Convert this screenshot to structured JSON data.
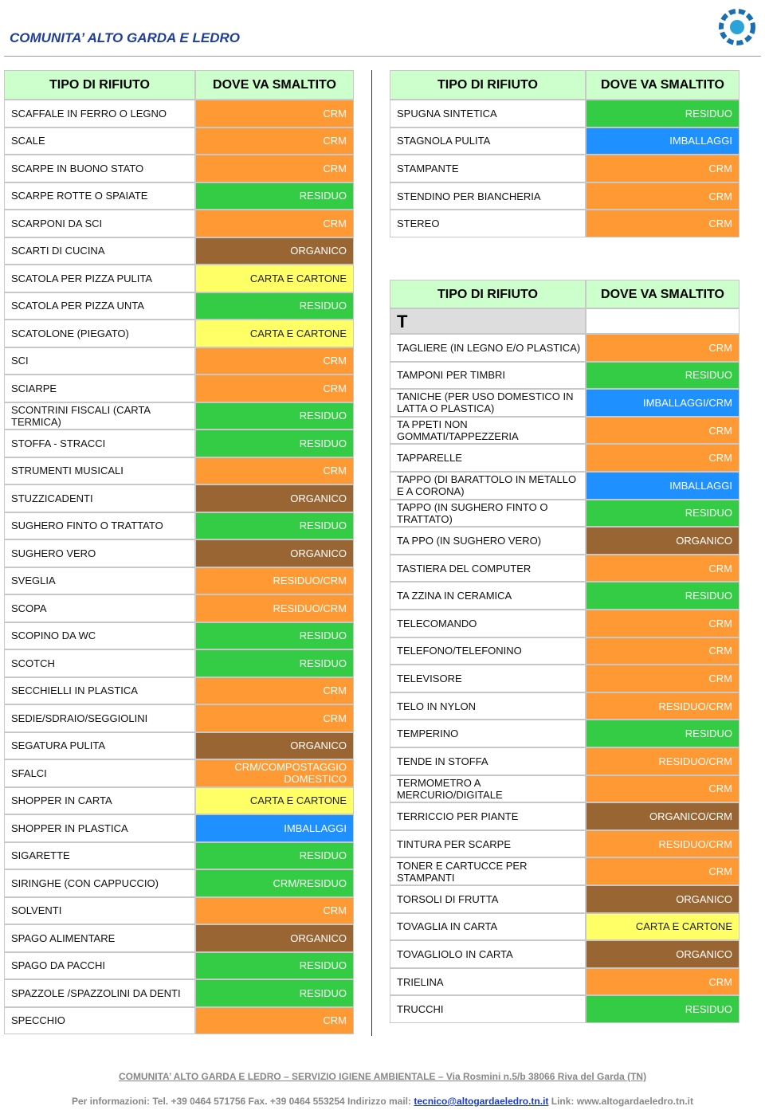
{
  "header": {
    "title": "COMUNITA’ ALTO GARDA E LEDRO"
  },
  "left_table": {
    "columns": [
      "TIPO DI RIFIUTO",
      "DOVE VA SMALTITO"
    ],
    "rows": [
      {
        "item": "SCAFFALE IN FERRO O LEGNO",
        "bin": "CRM",
        "color": "#ff9933"
      },
      {
        "item": "SCALE",
        "bin": "CRM",
        "color": "#ff9933"
      },
      {
        "item": "SCARPE IN BUONO STATO",
        "bin": "CRM",
        "color": "#ff9933"
      },
      {
        "item": "SCARPE ROTTE O SPAIATE",
        "bin": "RESIDUO",
        "color": "#33cc44"
      },
      {
        "item": "SCARPONI DA SCI",
        "bin": "CRM",
        "color": "#ff9933"
      },
      {
        "item": "SCARTI DI CUCINA",
        "bin": "ORGANICO",
        "color": "#996633"
      },
      {
        "item": "SCATOLA PER PIZZA PULITA",
        "bin": "CARTA E CARTONE",
        "color": "#ffff66"
      },
      {
        "item": "SCATOLA PER PIZZA UNTA",
        "bin": "RESIDUO",
        "color": "#33cc44"
      },
      {
        "item": "SCATOLONE (PIEGATO)",
        "bin": "CARTA E CARTONE",
        "color": "#ffff66"
      },
      {
        "item": "SCI",
        "bin": "CRM",
        "color": "#ff9933"
      },
      {
        "item": "SCIARPE",
        "bin": "CRM",
        "color": "#ff9933"
      },
      {
        "item": "SCONTRINI FISCALI (CARTA TERMICA)",
        "bin": "RESIDUO",
        "color": "#33cc44"
      },
      {
        "item": "STOFFA - STRACCI",
        "bin": "RESIDUO",
        "color": "#33cc44"
      },
      {
        "item": "STRUMENTI MUSICALI",
        "bin": "CRM",
        "color": "#ff9933"
      },
      {
        "item": "STUZZICADENTI",
        "bin": "ORGANICO",
        "color": "#996633"
      },
      {
        "item": "SUGHERO FINTO O TRATTATO",
        "bin": "RESIDUO",
        "color": "#33cc44"
      },
      {
        "item": "SUGHERO VERO",
        "bin": "ORGANICO",
        "color": "#996633"
      },
      {
        "item": "SVEGLIA",
        "bin": "RESIDUO/CRM",
        "color": "#ff9933"
      },
      {
        "item": "SCOPA",
        "bin": "RESIDUO/CRM",
        "color": "#ff9933"
      },
      {
        "item": "SCOPINO DA WC",
        "bin": "RESIDUO",
        "color": "#33cc44"
      },
      {
        "item": "SCOTCH",
        "bin": "RESIDUO",
        "color": "#33cc44"
      },
      {
        "item": "SECCHIELLI IN PLASTICA",
        "bin": "CRM",
        "color": "#ff9933"
      },
      {
        "item": "SEDIE/SDRAIO/SEGGIOLINI",
        "bin": "CRM",
        "color": "#ff9933"
      },
      {
        "item": "SEGATURA PULITA",
        "bin": "ORGANICO",
        "color": "#996633"
      },
      {
        "item": "SFALCI",
        "bin": "CRM/COMPOSTAGGIO DOMESTICO",
        "color": "#ff9933"
      },
      {
        "item": "SHOPPER IN CARTA",
        "bin": "CARTA E CARTONE",
        "color": "#ffff66"
      },
      {
        "item": "SHOPPER IN PLASTICA",
        "bin": "IMBALLAGGI",
        "color": "#1e90ff"
      },
      {
        "item": "SIGARETTE",
        "bin": "RESIDUO",
        "color": "#33cc44"
      },
      {
        "item": "SIRINGHE (CON CAPPUCCIO)",
        "bin": "CRM/RESIDUO",
        "color": "#33cc44"
      },
      {
        "item": "SOLVENTI",
        "bin": "CRM",
        "color": "#ff9933"
      },
      {
        "item": "SPAGO ALIMENTARE",
        "bin": "ORGANICO",
        "color": "#996633"
      },
      {
        "item": "SPAGO DA PACCHI",
        "bin": "RESIDUO",
        "color": "#33cc44"
      },
      {
        "item": "SPAZZOLE /SPAZZOLINI DA DENTI",
        "bin": "RESIDUO",
        "color": "#33cc44"
      },
      {
        "item": "SPECCHIO",
        "bin": "CRM",
        "color": "#ff9933"
      }
    ]
  },
  "right_top_table": {
    "columns": [
      "TIPO DI RIFIUTO",
      "DOVE VA SMALTITO"
    ],
    "rows": [
      {
        "item": "SPUGNA SINTETICA",
        "bin": "RESIDUO",
        "color": "#33cc44"
      },
      {
        "item": "STAGNOLA PULITA",
        "bin": "IMBALLAGGI",
        "color": "#1e90ff"
      },
      {
        "item": "STAMPANTE",
        "bin": "CRM",
        "color": "#ff9933"
      },
      {
        "item": "STENDINO PER BIANCHERIA",
        "bin": "CRM",
        "color": "#ff9933"
      },
      {
        "item": "STEREO",
        "bin": "CRM",
        "color": "#ff9933"
      }
    ]
  },
  "right_bottom_table": {
    "columns": [
      "TIPO DI RIFIUTO",
      "DOVE VA SMALTITO"
    ],
    "letter": "T",
    "rows": [
      {
        "item": "TAGLIERE (IN LEGNO E/O PLASTICA)",
        "bin": "CRM",
        "color": "#ff9933"
      },
      {
        "item": "TAMPONI PER TIMBRI",
        "bin": "RESIDUO",
        "color": "#33cc44"
      },
      {
        "item": "TANICHE  (PER USO DOMESTICO IN LATTA O PLASTICA)",
        "bin": "IMBALLAGGI/CRM",
        "color": "#1e90ff"
      },
      {
        "item": "TA PPETI NON GOMMATI/TAPPEZZERIA",
        "bin": "CRM",
        "color": "#ff9933"
      },
      {
        "item": "TAPPARELLE",
        "bin": "CRM",
        "color": "#ff9933"
      },
      {
        "item": "TAPPO  (DI BARATTOLO IN METALLO E A CORONA)",
        "bin": "IMBALLAGGI",
        "color": "#1e90ff"
      },
      {
        "item": "TAPPO (IN SUGHERO FINTO O TRATTATO)",
        "bin": "RESIDUO",
        "color": "#33cc44"
      },
      {
        "item": "TA PPO  (IN SUGHERO VERO)",
        "bin": "ORGANICO",
        "color": "#996633"
      },
      {
        "item": "TASTIERA DEL COMPUTER",
        "bin": "CRM",
        "color": "#ff9933"
      },
      {
        "item": "TA ZZINA IN CERAMICA",
        "bin": "RESIDUO",
        "color": "#33cc44"
      },
      {
        "item": "TELECOMANDO",
        "bin": "CRM",
        "color": "#ff9933"
      },
      {
        "item": "TELEFONO/TELEFONINO",
        "bin": "CRM",
        "color": "#ff9933"
      },
      {
        "item": "TELEVISORE",
        "bin": "CRM",
        "color": "#ff9933"
      },
      {
        "item": "TELO IN NYLON",
        "bin": "RESIDUO/CRM",
        "color": "#ff9933"
      },
      {
        "item": "TEMPERINO",
        "bin": "RESIDUO",
        "color": "#33cc44"
      },
      {
        "item": "TENDE IN STOFFA",
        "bin": "RESIDUO/CRM",
        "color": "#ff9933"
      },
      {
        "item": "TERMOMETRO A MERCURIO/DIGITALE",
        "bin": "CRM",
        "color": "#ff9933"
      },
      {
        "item": "TERRICCIO PER PIANTE",
        "bin": "ORGANICO/CRM",
        "color": "#996633"
      },
      {
        "item": "TINTURA PER SCARPE",
        "bin": "RESIDUO/CRM",
        "color": "#ff9933"
      },
      {
        "item": "TONER E CARTUCCE PER STAMPANTI",
        "bin": "CRM",
        "color": "#ff9933"
      },
      {
        "item": "TORSOLI DI FRUTTA",
        "bin": "ORGANICO",
        "color": "#996633"
      },
      {
        "item": "TOVAGLIA IN CARTA",
        "bin": "CARTA E CARTONE",
        "color": "#ffff66"
      },
      {
        "item": "TOVAGLIOLO IN CARTA",
        "bin": "ORGANICO",
        "color": "#996633"
      },
      {
        "item": "TRIELINA",
        "bin": "CRM",
        "color": "#ff9933"
      },
      {
        "item": "TRUCCHI",
        "bin": "RESIDUO",
        "color": "#33cc44"
      }
    ]
  },
  "footer": {
    "line1": "COMUNITA’ ALTO GARDA E LEDRO – SERVIZIO IGIENE AMBIENTALE – Via Rosmini n.5/b 38066 Riva del Garda (TN)",
    "info": "Per informazioni: Tel. +39 0464 571756 Fax. +39 0464 553254 Indirizzo mail:",
    "email": "tecnico@altogardaeledro.tn.it",
    "link": "Link: www.altogardaeledro.tn.it"
  }
}
